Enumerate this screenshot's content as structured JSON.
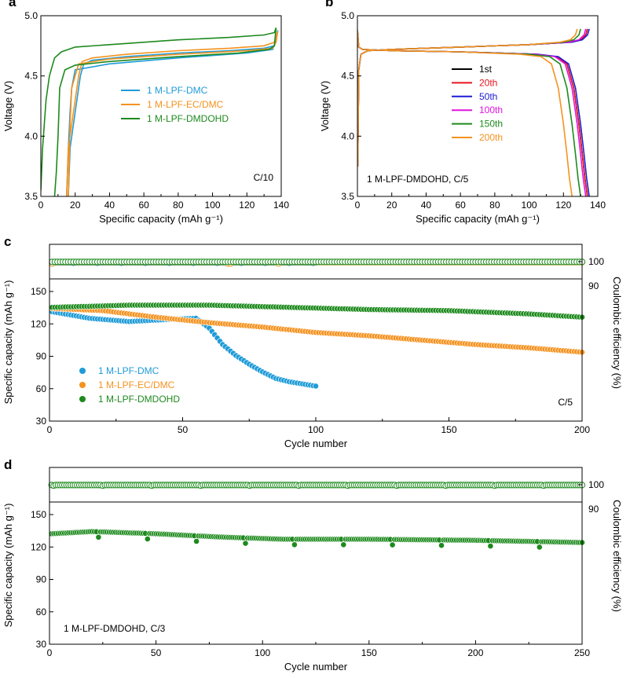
{
  "colors": {
    "dmc": "#1f9bd7",
    "ecdmc": "#f5921f",
    "dmdohd": "#1d8a1d",
    "cyc1": "#000000",
    "cyc20": "#e8141c",
    "cyc50": "#1c1cd6",
    "cyc100": "#e014e0",
    "cyc150": "#1d8a1d",
    "cyc200": "#f5921f"
  },
  "chart_data": [
    {
      "id": "a",
      "type": "line",
      "panel_label": "a",
      "xlabel": "Specific capacity (mAh g⁻¹)",
      "ylabel": "Voltage (V)",
      "xlim": [
        0,
        140
      ],
      "ylim": [
        3.5,
        5.0
      ],
      "xticks": [
        "0",
        "20",
        "40",
        "60",
        "80",
        "100",
        "120",
        "140"
      ],
      "yticks": [
        "3.5",
        "4.0",
        "4.5",
        "5.0"
      ],
      "annotation": "C/10",
      "legend": [
        "1 M-LPF-DMC",
        "1 M-LPF-EC/DMC",
        "1 M-LPF-DMDOHD"
      ],
      "series": [
        {
          "name": "1 M-LPF-DMC",
          "color_key": "dmc",
          "points": [
            [
              16,
              3.5
            ],
            [
              17,
              3.9
            ],
            [
              19,
              4.1
            ],
            [
              21,
              4.3
            ],
            [
              23,
              4.5
            ],
            [
              25,
              4.6
            ],
            [
              30,
              4.63
            ],
            [
              50,
              4.66
            ],
            [
              80,
              4.69
            ],
            [
              110,
              4.71
            ],
            [
              130,
              4.73
            ],
            [
              136,
              4.75
            ],
            [
              138,
              4.88
            ],
            [
              137,
              4.8
            ],
            [
              135,
              4.72
            ],
            [
              120,
              4.69
            ],
            [
              80,
              4.65
            ],
            [
              40,
              4.6
            ],
            [
              20,
              4.55
            ],
            [
              18,
              4.4
            ],
            [
              17,
              4.2
            ],
            [
              16,
              3.9
            ],
            [
              15,
              3.5
            ]
          ]
        },
        {
          "name": "1 M-LPF-EC/DMC",
          "color_key": "ecdmc",
          "points": [
            [
              15,
              3.5
            ],
            [
              16,
              3.9
            ],
            [
              18,
              4.1
            ],
            [
              20,
              4.3
            ],
            [
              22,
              4.5
            ],
            [
              24,
              4.62
            ],
            [
              30,
              4.65
            ],
            [
              50,
              4.68
            ],
            [
              80,
              4.71
            ],
            [
              110,
              4.73
            ],
            [
              130,
              4.75
            ],
            [
              136,
              4.78
            ],
            [
              138,
              4.87
            ],
            [
              137,
              4.78
            ],
            [
              135,
              4.73
            ],
            [
              120,
              4.71
            ],
            [
              80,
              4.68
            ],
            [
              40,
              4.64
            ],
            [
              22,
              4.6
            ],
            [
              18,
              4.4
            ],
            [
              17,
              4.1
            ],
            [
              16,
              3.5
            ]
          ]
        },
        {
          "name": "1 M-LPF-DMDOHD",
          "color_key": "dmdohd",
          "points": [
            [
              0,
              3.55
            ],
            [
              1,
              3.9
            ],
            [
              3,
              4.3
            ],
            [
              5,
              4.5
            ],
            [
              8,
              4.65
            ],
            [
              12,
              4.7
            ],
            [
              20,
              4.74
            ],
            [
              50,
              4.77
            ],
            [
              80,
              4.8
            ],
            [
              110,
              4.82
            ],
            [
              130,
              4.84
            ],
            [
              136,
              4.86
            ],
            [
              137,
              4.9
            ],
            [
              136,
              4.75
            ],
            [
              133,
              4.72
            ],
            [
              115,
              4.69
            ],
            [
              80,
              4.66
            ],
            [
              40,
              4.62
            ],
            [
              20,
              4.59
            ],
            [
              14,
              4.55
            ],
            [
              11,
              4.4
            ],
            [
              10,
              4.0
            ],
            [
              9,
              3.7
            ],
            [
              8,
              3.5
            ]
          ]
        }
      ]
    },
    {
      "id": "b",
      "type": "line",
      "panel_label": "b",
      "xlabel": "Specific capacity (mAh g⁻¹)",
      "ylabel": "Voltage (V)",
      "xlim": [
        0,
        140
      ],
      "ylim": [
        3.5,
        5.0
      ],
      "xticks": [
        "0",
        "20",
        "40",
        "60",
        "80",
        "100",
        "120",
        "140"
      ],
      "yticks": [
        "3.5",
        "4.0",
        "4.5",
        "5.0"
      ],
      "annotation": "1 M-LPF-DMDOHD, C/5",
      "legend": [
        "1st",
        "20th",
        "50th",
        "100th",
        "150th",
        "200th"
      ],
      "series": [
        {
          "name": "1st",
          "color_key": "cyc1",
          "end_charge": 134,
          "end_discharge": 134
        },
        {
          "name": "20th",
          "color_key": "cyc20",
          "end_charge": 134,
          "end_discharge": 134
        },
        {
          "name": "50th",
          "color_key": "cyc50",
          "end_charge": 135,
          "end_discharge": 135
        },
        {
          "name": "100th",
          "color_key": "cyc100",
          "end_charge": 133,
          "end_discharge": 133
        },
        {
          "name": "150th",
          "color_key": "cyc150",
          "end_charge": 130,
          "end_discharge": 130
        },
        {
          "name": "200th",
          "color_key": "cyc200",
          "end_charge": 128,
          "end_discharge": 125
        }
      ]
    },
    {
      "id": "c",
      "type": "scatter",
      "panel_label": "c",
      "xlabel": "Cycle number",
      "ylabel": "Specific capacity (mAh g⁻¹)",
      "y2label": "Coulombic efficiency (%)",
      "xlim": [
        0,
        200
      ],
      "ylim": [
        30,
        160
      ],
      "y2lim": [
        90,
        100
      ],
      "xticks": [
        "0",
        "50",
        "100",
        "150",
        "200"
      ],
      "yticks": [
        "30",
        "60",
        "90",
        "120",
        "150"
      ],
      "y2ticks": [
        "90",
        "100"
      ],
      "annotation": "C/5",
      "legend": [
        "1 M-LPF-DMC",
        "1 M-LPF-EC/DMC",
        "1 M-LPF-DMDOHD"
      ],
      "series": [
        {
          "name": "1 M-LPF-DMC",
          "color_key": "dmc",
          "cycles": 100,
          "capacity_knots": [
            [
              1,
              130
            ],
            [
              8,
              127
            ],
            [
              15,
              124
            ],
            [
              30,
              121
            ],
            [
              45,
              123
            ],
            [
              55,
              124
            ],
            [
              60,
              115
            ],
            [
              65,
              100
            ],
            [
              70,
              90
            ],
            [
              75,
              82
            ],
            [
              80,
              75
            ],
            [
              85,
              69
            ],
            [
              90,
              66
            ],
            [
              95,
              64
            ],
            [
              100,
              62
            ]
          ],
          "ce": 99.3
        },
        {
          "name": "1 M-LPF-EC/DMC",
          "color_key": "ecdmc",
          "cycles": 200,
          "capacity_knots": [
            [
              1,
              133
            ],
            [
              20,
              131
            ],
            [
              40,
              125
            ],
            [
              60,
              120
            ],
            [
              80,
              116
            ],
            [
              100,
              111
            ],
            [
              120,
              108
            ],
            [
              140,
              104
            ],
            [
              160,
              100
            ],
            [
              180,
              97
            ],
            [
              200,
              93
            ]
          ],
          "ce": 99.6
        },
        {
          "name": "1 M-LPF-DMDOHD",
          "color_key": "dmdohd",
          "cycles": 200,
          "capacity_knots": [
            [
              1,
              134
            ],
            [
              30,
              136
            ],
            [
              60,
              136
            ],
            [
              90,
              134
            ],
            [
              120,
              132
            ],
            [
              150,
              131
            ],
            [
              180,
              128
            ],
            [
              200,
              125
            ]
          ],
          "ce": 99.8
        }
      ]
    },
    {
      "id": "d",
      "type": "scatter",
      "panel_label": "d",
      "xlabel": "Cycle number",
      "ylabel": "Specific capacity (mAh g⁻¹)",
      "y2label": "Coulombic efficiency (%)",
      "xlim": [
        0,
        250
      ],
      "ylim": [
        30,
        160
      ],
      "y2lim": [
        90,
        100
      ],
      "xticks": [
        "0",
        "50",
        "100",
        "150",
        "200",
        "250"
      ],
      "yticks": [
        "30",
        "60",
        "90",
        "120",
        "150"
      ],
      "y2ticks": [
        "90",
        "100"
      ],
      "annotation": "1 M-LPF-DMDOHD, C/3",
      "series": [
        {
          "name": "1 M-LPF-DMDOHD",
          "color_key": "dmdohd",
          "cycles": 250,
          "capacity_knots": [
            [
              1,
              131
            ],
            [
              20,
              133
            ],
            [
              50,
              131
            ],
            [
              80,
              128
            ],
            [
              110,
              126
            ],
            [
              150,
              126
            ],
            [
              200,
              125
            ],
            [
              250,
              123
            ]
          ],
          "ce": 99.7
        }
      ]
    }
  ]
}
